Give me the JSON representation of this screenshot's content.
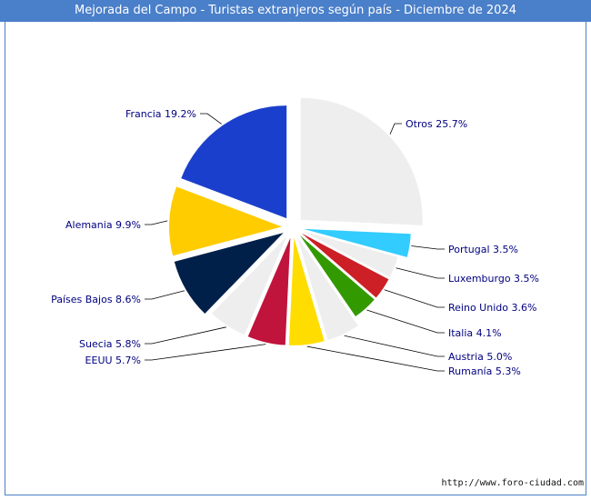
{
  "chart_data": {
    "type": "pie",
    "title": "Mejorada del Campo - Turistas extranjeros según país - Diciembre de 2024",
    "slices": [
      {
        "label": "Otros",
        "display": "Otros 25.7%",
        "value": 25.7,
        "color": "#eeeeee"
      },
      {
        "label": "Portugal",
        "display": "Portugal 3.5%",
        "value": 3.5,
        "color": "#33ccff"
      },
      {
        "label": "Luxemburgo",
        "display": "Luxemburgo 3.5%",
        "value": 3.5,
        "color": "#eeeeee"
      },
      {
        "label": "Reino Unido",
        "display": "Reino Unido 3.6%",
        "value": 3.6,
        "color": "#cc1f26"
      },
      {
        "label": "Italia",
        "display": "Italia 4.1%",
        "value": 4.1,
        "color": "#339900"
      },
      {
        "label": "Austria",
        "display": "Austria 5.0%",
        "value": 5.0,
        "color": "#eeeeee"
      },
      {
        "label": "Rumanía",
        "display": "Rumanía 5.3%",
        "value": 5.3,
        "color": "#ffdd00"
      },
      {
        "label": "EEUU",
        "display": "EEUU 5.7%",
        "value": 5.7,
        "color": "#c0143c"
      },
      {
        "label": "Suecia",
        "display": "Suecia 5.8%",
        "value": 5.8,
        "color": "#eeeeee"
      },
      {
        "label": "Países Bajos",
        "display": "Países Bajos 8.6%",
        "value": 8.6,
        "color": "#00204a"
      },
      {
        "label": "Alemania",
        "display": "Alemania 9.9%",
        "value": 9.9,
        "color": "#ffcc00"
      },
      {
        "label": "Francia",
        "display": "Francia 19.2%",
        "value": 19.2,
        "color": "#1a3fcc"
      }
    ]
  },
  "footer": {
    "url": "http://www.foro-ciudad.com"
  }
}
